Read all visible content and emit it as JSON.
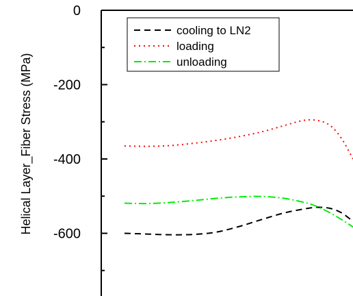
{
  "chart_data": {
    "type": "line",
    "title": "",
    "xlabel": "",
    "ylabel": "Helical Layer_Fiber Stress (MPa)",
    "x_range": [
      0,
      1
    ],
    "ylim": [
      -800,
      0
    ],
    "y_ticks": [
      0,
      -200,
      -400,
      -600
    ],
    "y_tick_labels": [
      "0",
      "-200",
      "-400",
      "-600"
    ],
    "grid": false,
    "legend_position": "top-center",
    "series": [
      {
        "name": "cooling to LN2",
        "color": "#000000",
        "style": "dashed",
        "x": [
          0.0,
          0.1,
          0.2,
          0.3,
          0.4,
          0.5,
          0.6,
          0.7,
          0.8,
          0.85,
          0.9,
          0.95,
          1.0
        ],
        "y": [
          -600,
          -602,
          -604,
          -603,
          -597,
          -582,
          -563,
          -545,
          -533,
          -530,
          -533,
          -545,
          -568
        ]
      },
      {
        "name": "loading",
        "color": "#ff0000",
        "style": "dotted",
        "x": [
          0.0,
          0.1,
          0.2,
          0.3,
          0.4,
          0.5,
          0.6,
          0.7,
          0.75,
          0.8,
          0.85,
          0.9,
          0.95,
          1.0
        ],
        "y": [
          -365,
          -366,
          -364,
          -358,
          -350,
          -340,
          -327,
          -310,
          -301,
          -295,
          -297,
          -310,
          -345,
          -400
        ]
      },
      {
        "name": "unloading",
        "color": "#00ee00",
        "style": "dashdot",
        "x": [
          0.0,
          0.1,
          0.2,
          0.3,
          0.4,
          0.5,
          0.6,
          0.7,
          0.8,
          0.85,
          0.9,
          0.95,
          1.0
        ],
        "y": [
          -519,
          -520,
          -517,
          -512,
          -506,
          -502,
          -501,
          -506,
          -519,
          -530,
          -545,
          -563,
          -583
        ]
      }
    ]
  }
}
